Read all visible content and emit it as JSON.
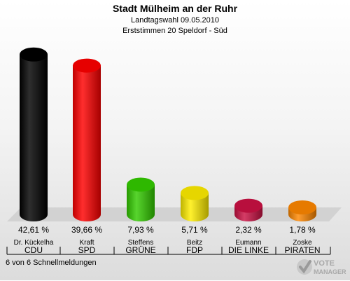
{
  "header": {
    "title": "Stadt Mülheim an der Ruhr",
    "subtitle": "Landtagswahl 09.05.2010",
    "subsubtitle": "Erststimmen 20 Speldorf - Süd"
  },
  "chart_data": {
    "type": "bar",
    "categories": [
      "CDU",
      "SPD",
      "GRÜNE",
      "FDP",
      "DIE LINKE",
      "PIRATEN"
    ],
    "candidates": [
      "Dr. Kückelha",
      "Kraft",
      "Steffens",
      "Beitz",
      "Eumann",
      "Zoske"
    ],
    "values": [
      42.61,
      39.66,
      7.93,
      5.71,
      2.32,
      1.78
    ],
    "value_labels": [
      "42,61 %",
      "39,66 %",
      "7,93 %",
      "5,71 %",
      "2,32 %",
      "1,78 %"
    ],
    "colors": [
      "#000000",
      "#ff0000",
      "#33cc00",
      "#ffee00",
      "#cc1144",
      "#ff8800"
    ],
    "ylim": [
      0,
      45
    ],
    "grid": false,
    "legend": "none"
  },
  "footer": {
    "status": "6 von 6 Schnellmeldungen"
  },
  "logo": {
    "line1": "VOTE",
    "line2": "MANAGER"
  }
}
